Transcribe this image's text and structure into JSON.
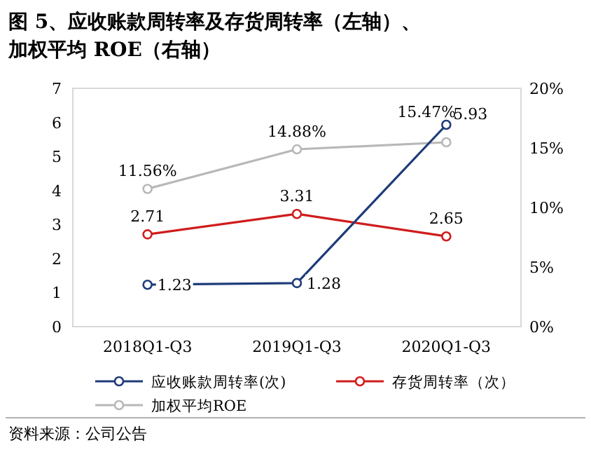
{
  "chart_data": {
    "type": "line",
    "title": "图 5、应收账款周转率及存货周转率（左轴）、加权平均 ROE（右轴）",
    "categories": [
      "2018Q1-Q3",
      "2019Q1-Q3",
      "2020Q1-Q3"
    ],
    "series": [
      {
        "name": "应收账款周转率(次)",
        "color": "#1f3c7a",
        "values": [
          1.23,
          1.28,
          5.93
        ],
        "value_labels": [
          "1.23",
          "1.28",
          "5.93"
        ]
      },
      {
        "name": "存货周转率（次）",
        "color": "#d01c1c",
        "values": [
          2.71,
          3.31,
          2.65
        ],
        "value_labels": [
          "2.71",
          "3.31",
          "2.65"
        ]
      },
      {
        "name": "加权平均ROE",
        "color": "#b8b8b8",
        "values": [
          11.56,
          14.88,
          15.47
        ],
        "axis": "y2",
        "value_labels": [
          "11.56%",
          "14.88%",
          "15.47%"
        ]
      }
    ],
    "ylim": [
      0,
      7
    ],
    "yticks": [
      0,
      1,
      2,
      3,
      4,
      5,
      6,
      7
    ],
    "y2lim": [
      0,
      20
    ],
    "y2ticks": [
      {
        "value": 0,
        "label": "0%"
      },
      {
        "value": 5,
        "label": "5%"
      },
      {
        "value": 10,
        "label": "10%"
      },
      {
        "value": 15,
        "label": "15%"
      },
      {
        "value": 20,
        "label": "20%"
      }
    ],
    "marker": "circle",
    "legend": "bottom",
    "grid": false,
    "annotations": [
      "资料来源：公司公告"
    ]
  }
}
